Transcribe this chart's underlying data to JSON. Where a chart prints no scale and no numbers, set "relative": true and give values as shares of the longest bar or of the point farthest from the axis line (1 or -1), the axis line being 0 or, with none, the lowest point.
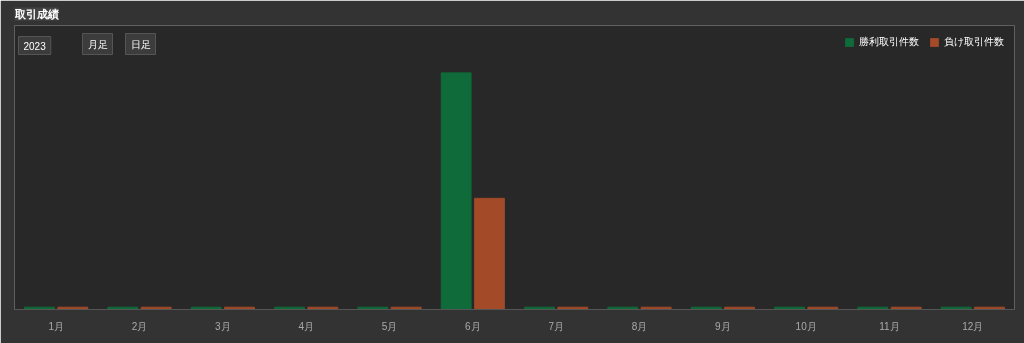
{
  "chart_data": {
    "type": "bar",
    "title": "取引成績",
    "relative": true,
    "categories": [
      "1月",
      "2月",
      "3月",
      "4月",
      "5月",
      "6月",
      "7月",
      "8月",
      "9月",
      "10月",
      "11月",
      "12月"
    ],
    "series": [
      {
        "name": "勝利取引件数",
        "color": "#0f6b3a",
        "values": [
          0.01,
          0.01,
          0.01,
          0.01,
          0.01,
          1,
          0.01,
          0.01,
          0.01,
          0.01,
          0.01,
          0.01
        ]
      },
      {
        "name": "負け取引件数",
        "color": "#a34a28",
        "values": [
          0.01,
          0.01,
          0.01,
          0.01,
          0.01,
          0.47,
          0.01,
          0.01,
          0.01,
          0.01,
          0.01,
          0.01
        ]
      }
    ],
    "annotations": [
      "2023",
      "月足",
      "日足"
    ],
    "legend": "top right",
    "grid": false
  }
}
